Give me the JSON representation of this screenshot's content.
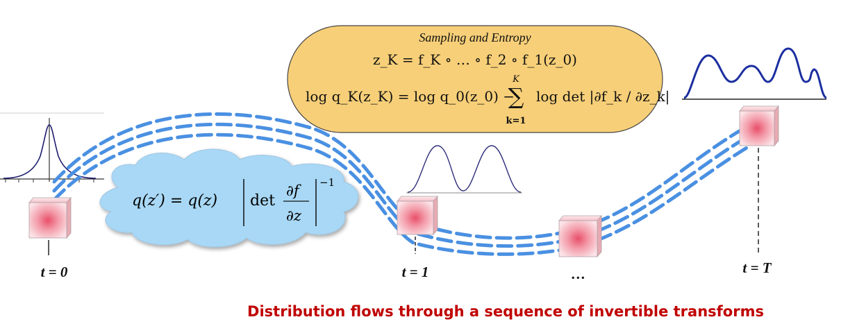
{
  "formula_box": {
    "title": "Sampling and Entropy",
    "line1": "z_K = f_K ∘ … ∘ f_2 ∘ f_1(z_0)",
    "line2_lhs": "log q_K(z_K) = log q_0(z_0) −",
    "sum_upper": "K",
    "sum_lower": "k=1",
    "line2_rhs": "log det |∂f_k / ∂z_k|"
  },
  "cloud_formula": {
    "lhs": "q(z′) = q(z)",
    "det": "det",
    "numerator": "∂f",
    "denominator": "∂z",
    "exponent": "−1"
  },
  "time_labels": {
    "t0": "t = 0",
    "t1": "t = 1",
    "dots": "…",
    "tT": "t = T"
  },
  "caption": "Distribution flows through a sequence of invertible transforms",
  "colors": {
    "flow_dash": "#4a90e2",
    "cloud_fill": "#a8d8f5",
    "formula_box_fill": "#f7cf78",
    "caption": "#c00000",
    "cube": "#f3b4bd"
  }
}
